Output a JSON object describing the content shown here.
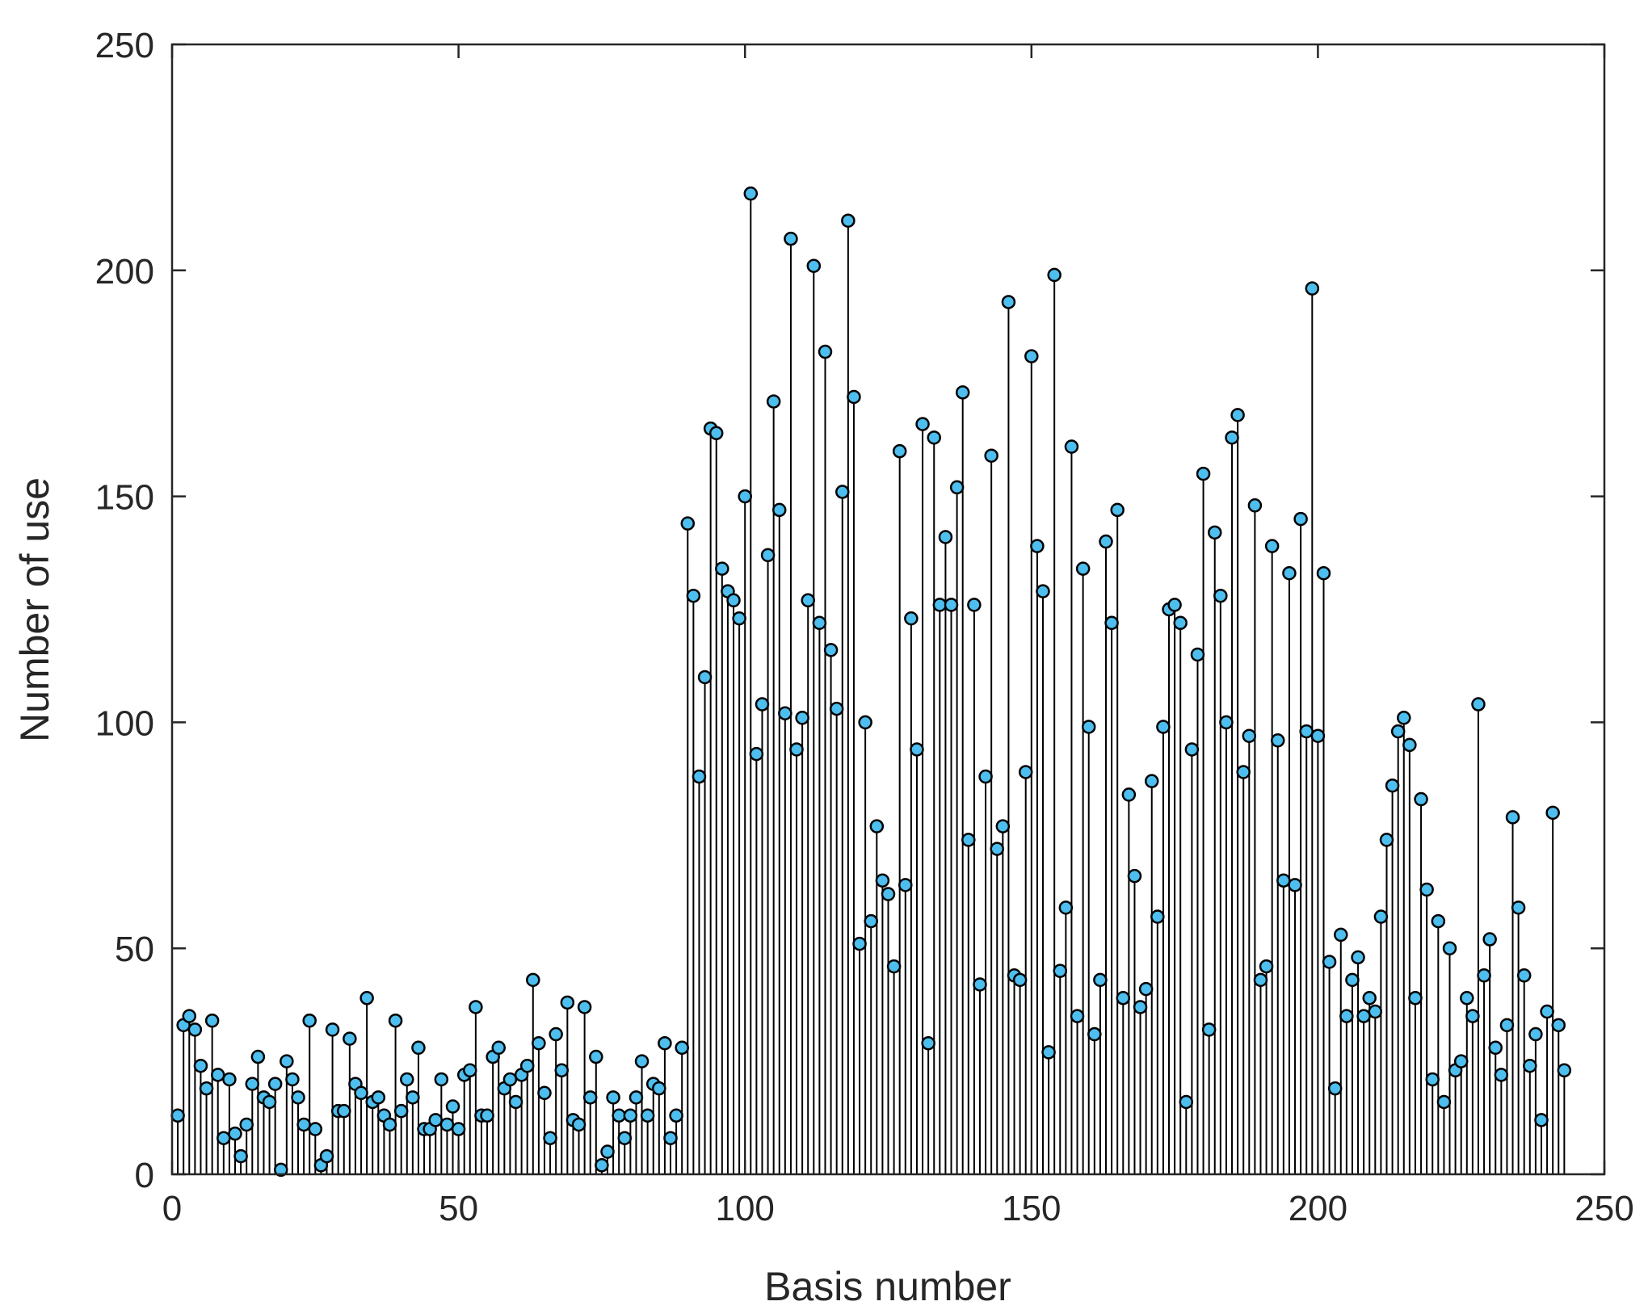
{
  "chart_data": {
    "type": "stem",
    "xlabel": "Basis number",
    "ylabel": "Number of use",
    "xlim": [
      0,
      250
    ],
    "ylim": [
      0,
      250
    ],
    "xticks": [
      0,
      50,
      100,
      150,
      200,
      250
    ],
    "yticks": [
      0,
      50,
      100,
      150,
      200,
      250
    ],
    "grid": false,
    "box": true,
    "x_start": 1,
    "values": [
      13,
      33,
      35,
      32,
      24,
      19,
      34,
      22,
      8,
      21,
      9,
      4,
      11,
      20,
      26,
      17,
      16,
      20,
      1,
      25,
      21,
      17,
      11,
      34,
      10,
      2,
      4,
      32,
      14,
      14,
      30,
      20,
      18,
      39,
      16,
      17,
      13,
      11,
      34,
      14,
      21,
      17,
      28,
      10,
      10,
      12,
      21,
      11,
      15,
      10,
      22,
      23,
      37,
      13,
      13,
      26,
      28,
      19,
      21,
      16,
      22,
      24,
      43,
      29,
      18,
      8,
      31,
      23,
      38,
      12,
      11,
      37,
      17,
      26,
      2,
      5,
      17,
      13,
      8,
      13,
      17,
      25,
      13,
      20,
      19,
      29,
      8,
      13,
      28,
      144,
      128,
      88,
      110,
      165,
      164,
      134,
      129,
      127,
      123,
      150,
      217,
      93,
      104,
      137,
      171,
      147,
      102,
      207,
      94,
      101,
      127,
      201,
      122,
      182,
      116,
      103,
      151,
      211,
      172,
      51,
      100,
      56,
      77,
      65,
      62,
      46,
      160,
      64,
      123,
      94,
      166,
      29,
      163,
      126,
      141,
      126,
      152,
      173,
      74,
      126,
      42,
      88,
      159,
      72,
      77,
      193,
      44,
      43,
      89,
      181,
      139,
      129,
      27,
      199,
      45,
      59,
      161,
      35,
      134,
      99,
      31,
      43,
      140,
      122,
      147,
      39,
      84,
      66,
      37,
      41,
      87,
      57,
      99,
      125,
      126,
      122,
      16,
      94,
      115,
      155,
      32,
      142,
      128,
      100,
      163,
      168,
      89,
      97,
      148,
      43,
      46,
      139,
      96,
      65,
      133,
      64,
      145,
      98,
      196,
      97,
      133,
      47,
      19,
      53,
      35,
      43,
      48,
      35,
      39,
      36,
      57,
      74,
      86,
      98,
      101,
      95,
      39,
      83,
      63,
      21,
      56,
      16,
      50,
      23,
      25,
      39,
      35,
      104,
      44,
      52,
      28,
      22,
      33,
      79,
      59,
      44,
      24,
      31,
      12,
      36,
      80,
      33,
      23
    ],
    "colors": {
      "marker_fill": "#4DBEEE",
      "marker_edge": "#000000",
      "stem": "#000000",
      "axis": "#262626"
    }
  }
}
